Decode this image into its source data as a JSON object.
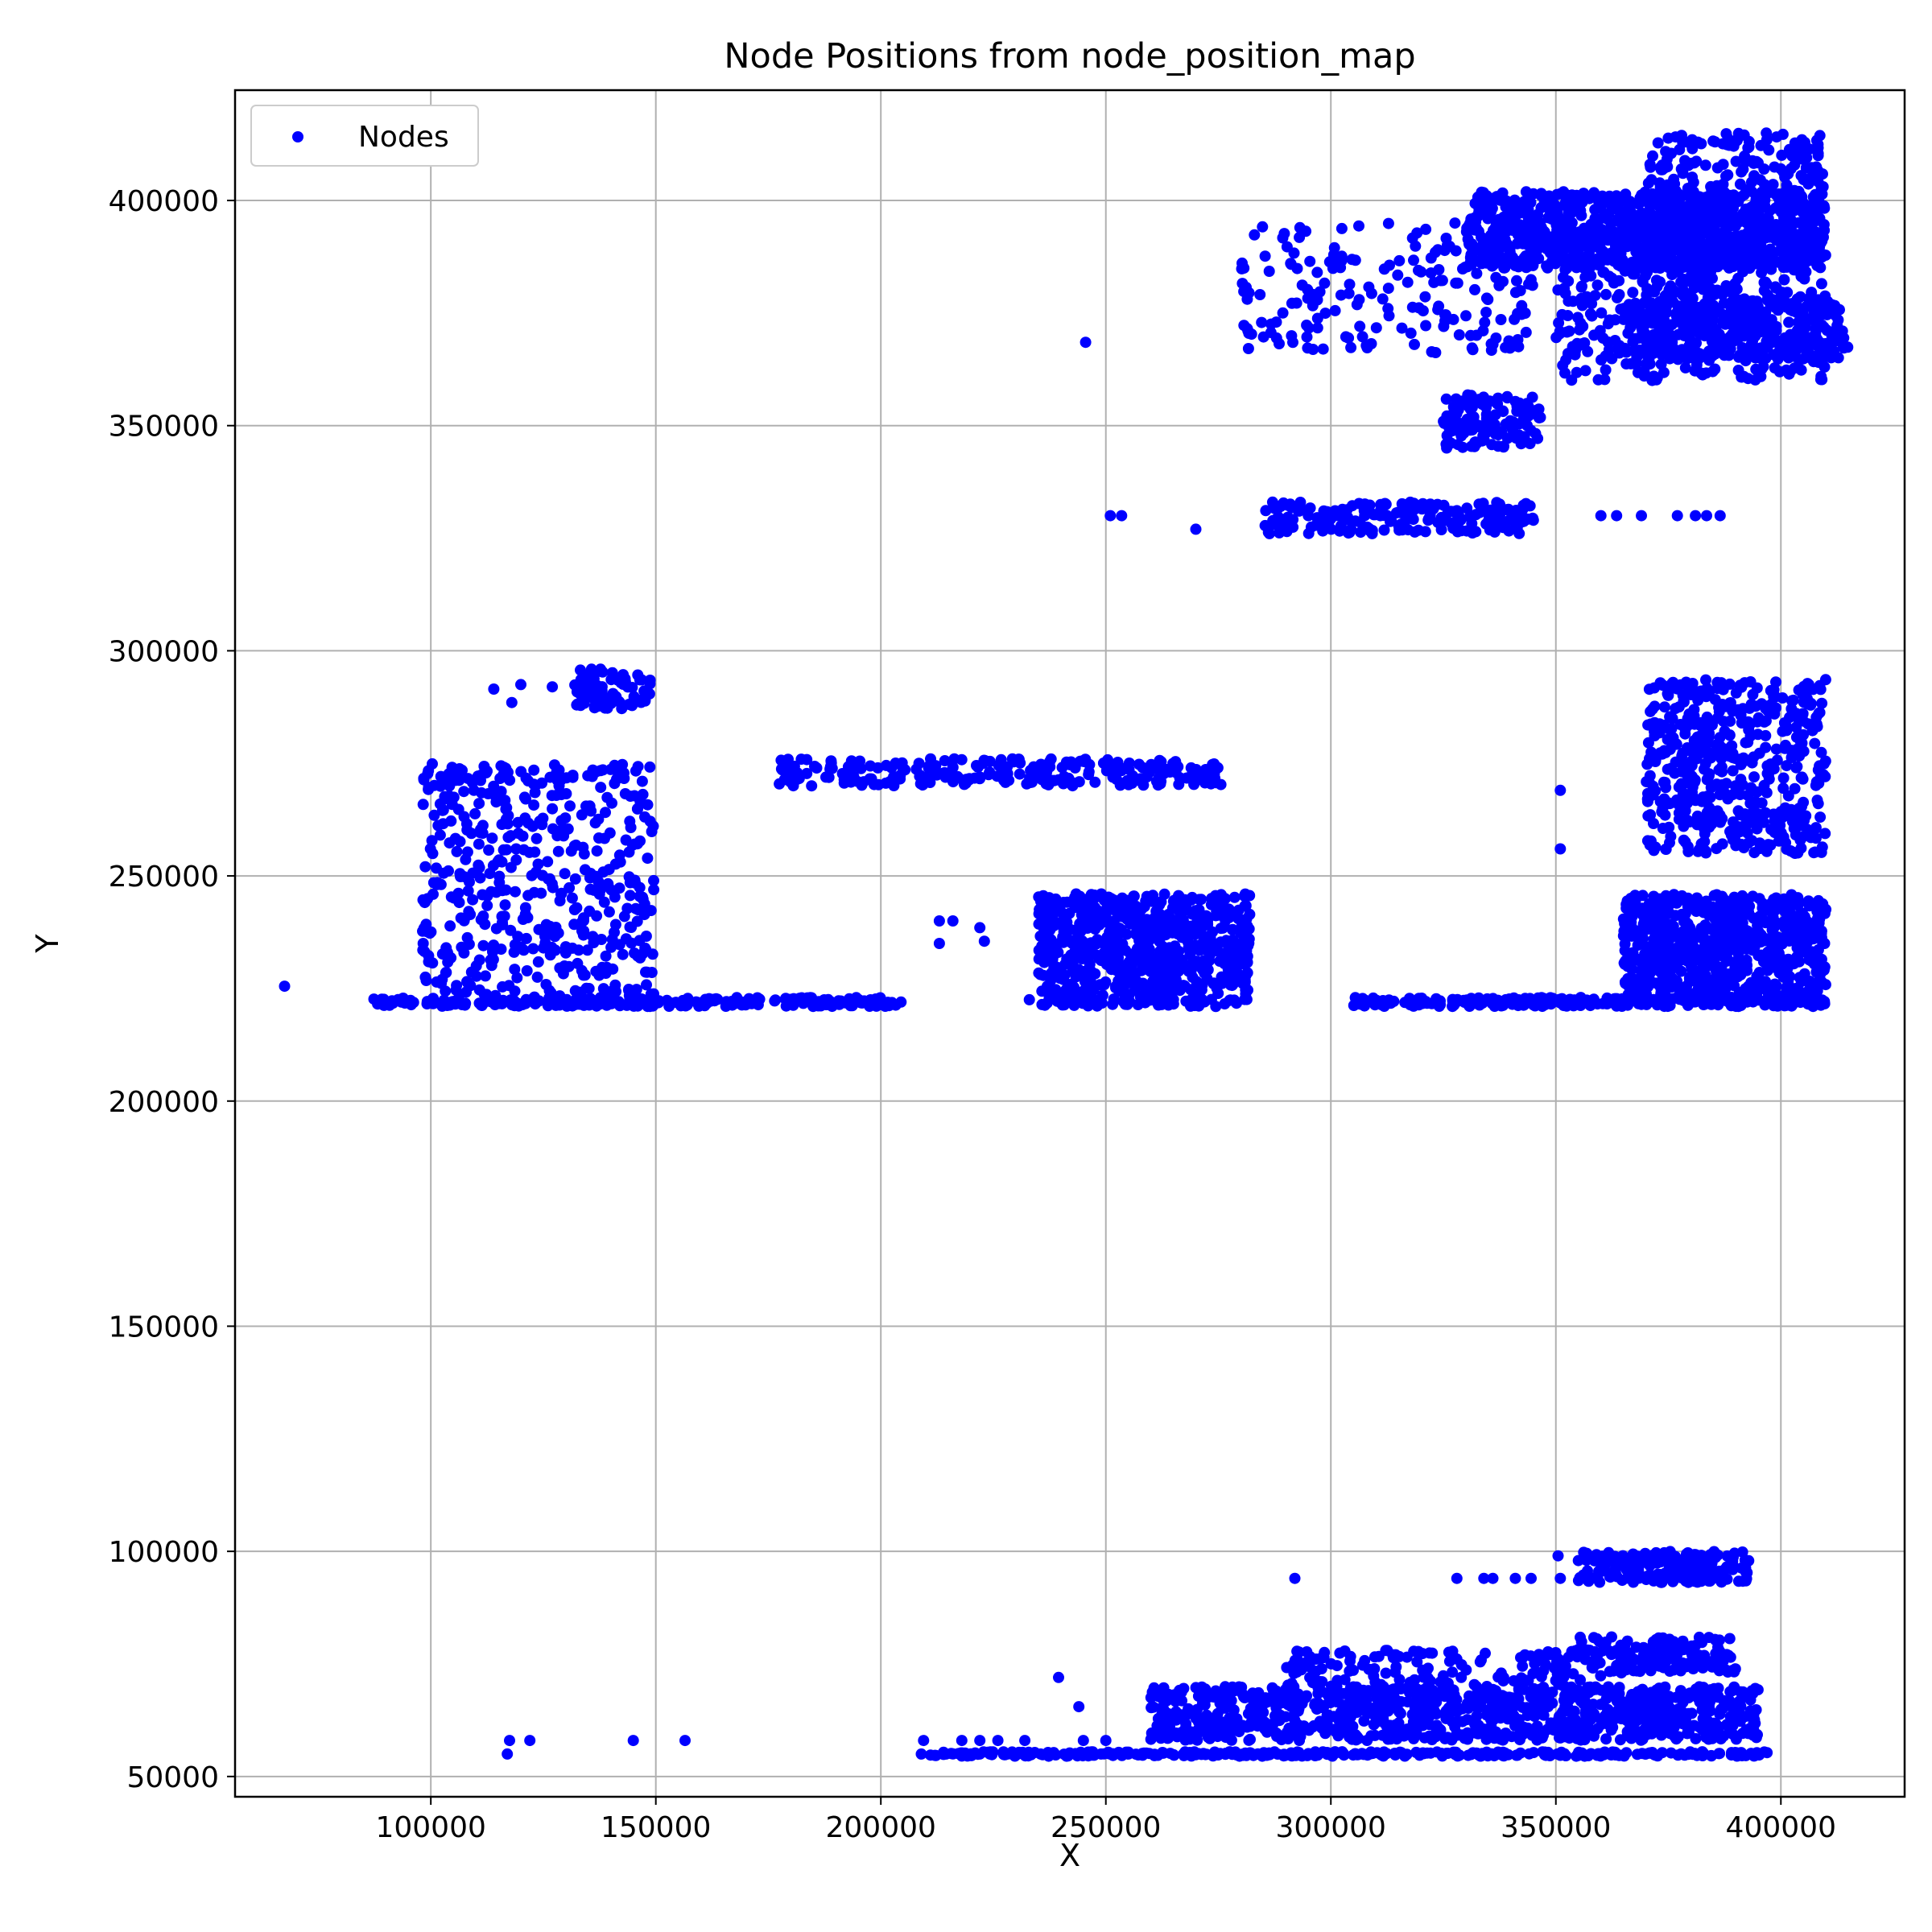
{
  "chart_data": {
    "type": "scatter",
    "title": "Node Positions from node_position_map",
    "xlabel": "X",
    "ylabel": "Y",
    "xlim": [
      56500,
      427500
    ],
    "ylim": [
      45500,
      424500
    ],
    "xticks": [
      100000,
      150000,
      200000,
      250000,
      300000,
      350000,
      400000
    ],
    "yticks": [
      50000,
      100000,
      150000,
      200000,
      250000,
      300000,
      350000,
      400000
    ],
    "grid": true,
    "legend_position": "top-left",
    "series": [
      {
        "name": "Nodes",
        "color": "#0000ff",
        "clusters": [
          {
            "x": [
              330000,
              410000
            ],
            "y": [
              385000,
              402000
            ],
            "n": 900
          },
          {
            "x": [
              370000,
              410000
            ],
            "y": [
              360000,
              415000
            ],
            "n": 500
          },
          {
            "x": [
              365000,
              415000
            ],
            "y": [
              365000,
              378000
            ],
            "n": 300
          },
          {
            "x": [
              350000,
              385000
            ],
            "y": [
              360000,
              395000
            ],
            "n": 250
          },
          {
            "x": [
              280000,
              345000
            ],
            "y": [
              366000,
              395000
            ],
            "n": 200
          },
          {
            "x": [
              325000,
              347000
            ],
            "y": [
              345000,
              357000
            ],
            "n": 120
          },
          {
            "x": [
              285000,
              345000
            ],
            "y": [
              326000,
              333000
            ],
            "n": 200
          },
          {
            "x": [
              177000,
              276000
            ],
            "y": [
              270000,
              276000
            ],
            "n": 250
          },
          {
            "x": [
              98000,
              150000
            ],
            "y": [
              221000,
              275000
            ],
            "n": 500
          },
          {
            "x": [
              132000,
              149000
            ],
            "y": [
              287000,
              296000
            ],
            "n": 80
          },
          {
            "x": [
              87000,
              205000
            ],
            "y": [
              221000,
              223000
            ],
            "n": 250
          },
          {
            "x": [
              235000,
              282000
            ],
            "y": [
              221000,
              246000
            ],
            "n": 700
          },
          {
            "x": [
              305000,
              410000
            ],
            "y": [
              221000,
              223000
            ],
            "n": 250
          },
          {
            "x": [
              365000,
              410000
            ],
            "y": [
              222000,
              246000
            ],
            "n": 700
          },
          {
            "x": [
              370000,
              410000
            ],
            "y": [
              255000,
              294000
            ],
            "n": 500
          },
          {
            "x": [
              355000,
              393000
            ],
            "y": [
              93000,
              100000
            ],
            "n": 200
          },
          {
            "x": [
              355000,
              390000
            ],
            "y": [
              73000,
              81000
            ],
            "n": 150
          },
          {
            "x": [
              260000,
              395000
            ],
            "y": [
              58000,
              70000
            ],
            "n": 900
          },
          {
            "x": [
              290000,
              360000
            ],
            "y": [
              66000,
              78000
            ],
            "n": 200
          },
          {
            "x": [
              209000,
              397000
            ],
            "y": [
              54500,
              55500
            ],
            "n": 350
          }
        ],
        "points": [
          [
            67500,
            225500
          ],
          [
            117000,
            55000
          ],
          [
            117500,
            58000
          ],
          [
            122000,
            58000
          ],
          [
            145000,
            58000
          ],
          [
            156500,
            58000
          ],
          [
            209000,
            55000
          ],
          [
            209500,
            58000
          ],
          [
            214500,
            55000
          ],
          [
            218000,
            58000
          ],
          [
            222000,
            58000
          ],
          [
            222000,
            55000
          ],
          [
            226000,
            58000
          ],
          [
            230000,
            55000
          ],
          [
            232000,
            58000
          ],
          [
            235500,
            55000
          ],
          [
            239500,
            72000
          ],
          [
            244000,
            65500
          ],
          [
            245000,
            58000
          ],
          [
            246000,
            55000
          ],
          [
            250000,
            58000
          ],
          [
            251000,
            55000
          ],
          [
            255000,
            55000
          ],
          [
            245500,
            368500
          ],
          [
            251000,
            330000
          ],
          [
            253500,
            330000
          ],
          [
            270000,
            327000
          ],
          [
            292000,
            94000
          ],
          [
            213000,
            240000
          ],
          [
            213000,
            235000
          ],
          [
            216000,
            240000
          ],
          [
            222000,
            238500
          ],
          [
            223000,
            235500
          ],
          [
            233000,
            222500
          ],
          [
            237000,
            225500
          ],
          [
            242000,
            222500
          ],
          [
            114000,
            291500
          ],
          [
            118000,
            288500
          ],
          [
            120000,
            292500
          ],
          [
            127000,
            292000
          ],
          [
            128000,
            222500
          ],
          [
            147000,
            271000
          ],
          [
            136000,
            273500
          ],
          [
            128500,
            273500
          ],
          [
            128500,
            270000
          ],
          [
            351000,
            269000
          ],
          [
            351000,
            256000
          ],
          [
            351000,
            401500
          ],
          [
            355000,
            401000
          ],
          [
            349000,
            398500
          ],
          [
            348500,
            401000
          ],
          [
            345000,
            401500
          ],
          [
            307500,
            330000
          ],
          [
            311000,
            330000
          ],
          [
            312500,
            330000
          ],
          [
            290000,
            327500
          ],
          [
            295000,
            330000
          ],
          [
            360000,
            330000
          ],
          [
            363500,
            330000
          ],
          [
            369000,
            330000
          ],
          [
            377000,
            330000
          ],
          [
            381000,
            330000
          ],
          [
            383500,
            330000
          ],
          [
            386500,
            330000
          ],
          [
            345000,
            329000
          ],
          [
            328000,
            94000
          ],
          [
            334000,
            94000
          ],
          [
            336000,
            94000
          ],
          [
            341000,
            94000
          ],
          [
            344500,
            94000
          ],
          [
            350500,
            99000
          ],
          [
            351000,
            94000
          ]
        ]
      }
    ]
  }
}
